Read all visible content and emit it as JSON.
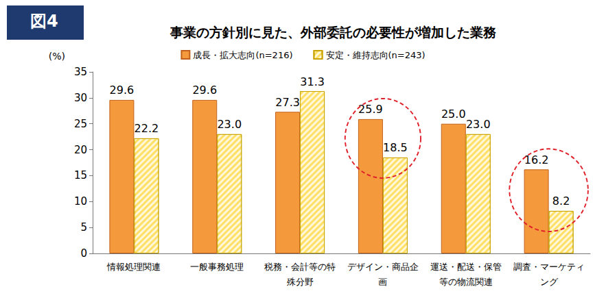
{
  "chart_data": {
    "type": "bar",
    "figure_label": "図4",
    "title": "事業の方針別に見た、外部委託の必要性が増加した業務",
    "y_label": "(%)",
    "categories": [
      "情報処理関連",
      "一般事務処理",
      "税務・会計等の特殊分野",
      "デザイン・商品企画",
      "運送・配送・保管等の物流関連",
      "調査・マーケティング"
    ],
    "series": [
      {
        "name": "成長・拡大志向(n=216)",
        "color": "#f59a3c",
        "values": [
          29.6,
          29.6,
          27.3,
          25.9,
          25.0,
          16.2
        ],
        "value_labels": [
          "29.6",
          "29.6",
          "27.3",
          "25.9",
          "25.0",
          "16.2"
        ]
      },
      {
        "name": "安定・維持志向(n=243)",
        "color": "#ffe066",
        "values": [
          22.2,
          23.0,
          31.3,
          18.5,
          23.0,
          8.2
        ],
        "value_labels": [
          "22.2",
          "23.0",
          "31.3",
          "18.5",
          "23.0",
          "8.2"
        ]
      }
    ],
    "highlight": [
      "デザイン・商品企画",
      "調査・マーケティング"
    ],
    "ylim": [
      0,
      35
    ],
    "yticks": [
      0,
      5,
      10,
      15,
      20,
      25,
      30,
      35
    ],
    "grid": false,
    "legend": "top",
    "data_labels": true
  }
}
